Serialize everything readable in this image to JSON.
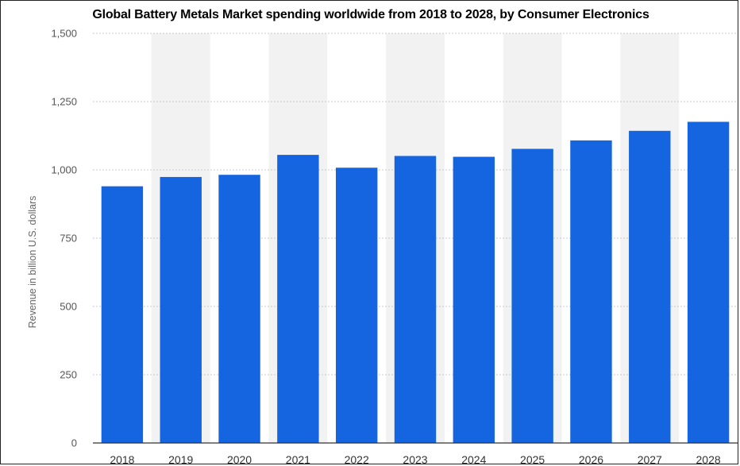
{
  "chart_data": {
    "type": "bar",
    "title": "Global Battery Metals Market spending worldwide from 2018 to 2028, by Consumer Electronics",
    "xlabel": "",
    "ylabel": "Revenue in billion U.S. dollars",
    "categories": [
      "2018",
      "2019",
      "2020",
      "2021",
      "2022",
      "2023",
      "2024",
      "2025",
      "2026",
      "2027",
      "2028"
    ],
    "values": [
      940,
      974,
      982,
      1055,
      1008,
      1051,
      1048,
      1077,
      1108,
      1143,
      1176
    ],
    "ylim": [
      0,
      1500
    ],
    "yticks": [
      "0",
      "250",
      "500",
      "750",
      "1,000",
      "1,250",
      "1,500"
    ],
    "grid": true,
    "bar_color": "#1565e0",
    "band_color": "#f2f2f2"
  }
}
